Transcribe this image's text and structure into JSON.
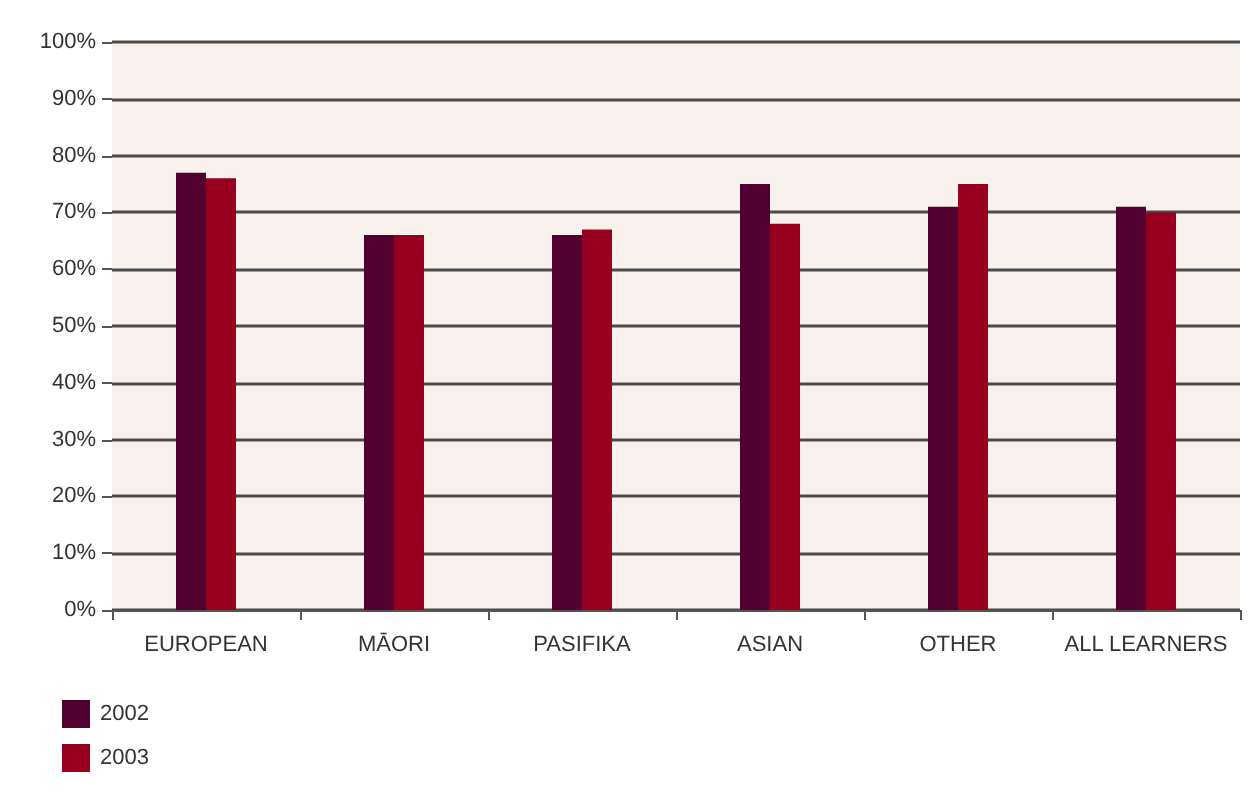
{
  "chart_data": {
    "type": "bar",
    "categories": [
      "EUROPEAN",
      "MĀORI",
      "PASIFIKA",
      "ASIAN",
      "OTHER",
      "ALL LEARNERS"
    ],
    "series": [
      {
        "name": "2002",
        "color": "#520030",
        "values": [
          77,
          66,
          66,
          75,
          71,
          71
        ]
      },
      {
        "name": "2003",
        "color": "#990020",
        "values": [
          76,
          66,
          67,
          68,
          75,
          70
        ]
      }
    ],
    "ylim": [
      0,
      100
    ],
    "yticks": [
      {
        "value": 0,
        "label": "0%"
      },
      {
        "value": 10,
        "label": "10%"
      },
      {
        "value": 20,
        "label": "20%"
      },
      {
        "value": 30,
        "label": "30%"
      },
      {
        "value": 40,
        "label": "40%"
      },
      {
        "value": 50,
        "label": "50%"
      },
      {
        "value": 60,
        "label": "60%"
      },
      {
        "value": 70,
        "label": "70%"
      },
      {
        "value": 80,
        "label": "80%"
      },
      {
        "value": 90,
        "label": "90%"
      },
      {
        "value": 100,
        "label": "100%"
      }
    ],
    "grid": true,
    "legend": "bottom left"
  }
}
